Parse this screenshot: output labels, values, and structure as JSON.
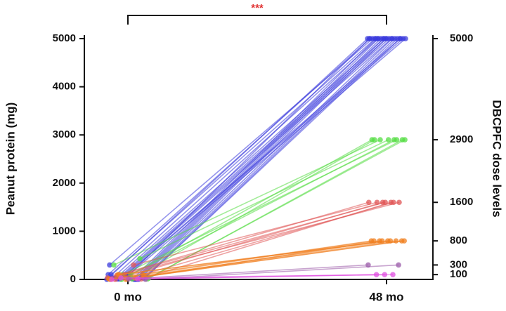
{
  "chart_data": {
    "type": "line",
    "categories": [
      "0 mo",
      "48 mo"
    ],
    "ylabel": "Peanut protein (mg)",
    "y2label": "DBCPFC dose levels",
    "annotation": "***",
    "ylim": [
      0,
      5000
    ],
    "yticks": [
      0,
      1000,
      2000,
      3000,
      4000,
      5000
    ],
    "y2lim": [
      0,
      5000
    ],
    "y2ticks": [
      100,
      300,
      800,
      1600,
      2900,
      5000
    ],
    "series": [
      {
        "color": "#3b3bdc",
        "values": [
          0,
          5000
        ]
      },
      {
        "color": "#3b3bdc",
        "values": [
          10,
          5000
        ]
      },
      {
        "color": "#3b3bdc",
        "values": [
          30,
          5000
        ]
      },
      {
        "color": "#3b3bdc",
        "values": [
          50,
          5000
        ]
      },
      {
        "color": "#3b3bdc",
        "values": [
          80,
          5000
        ]
      },
      {
        "color": "#3b3bdc",
        "values": [
          100,
          5000
        ]
      },
      {
        "color": "#3b3bdc",
        "values": [
          0,
          5000
        ]
      },
      {
        "color": "#3b3bdc",
        "values": [
          10,
          5000
        ]
      },
      {
        "color": "#3b3bdc",
        "values": [
          30,
          5000
        ]
      },
      {
        "color": "#3b3bdc",
        "values": [
          100,
          5000
        ]
      },
      {
        "color": "#3b3bdc",
        "values": [
          300,
          5000
        ]
      },
      {
        "color": "#3b3bdc",
        "values": [
          0,
          5000
        ]
      },
      {
        "color": "#3b3bdc",
        "values": [
          10,
          5000
        ]
      },
      {
        "color": "#3b3bdc",
        "values": [
          30,
          5000
        ]
      },
      {
        "color": "#3b3bdc",
        "values": [
          80,
          5000
        ]
      },
      {
        "color": "#3b3bdc",
        "values": [
          100,
          5000
        ]
      },
      {
        "color": "#3b3bdc",
        "values": [
          0,
          5000
        ]
      },
      {
        "color": "#3b3bdc",
        "values": [
          10,
          5000
        ]
      },
      {
        "color": "#3b3bdc",
        "values": [
          50,
          5000
        ]
      },
      {
        "color": "#3b3bdc",
        "values": [
          100,
          5000
        ]
      },
      {
        "color": "#3b3bdc",
        "values": [
          30,
          5000
        ]
      },
      {
        "color": "#3b3bdc",
        "values": [
          0,
          5000
        ]
      },
      {
        "color": "#55dd44",
        "values": [
          0,
          2900
        ]
      },
      {
        "color": "#55dd44",
        "values": [
          10,
          2900
        ]
      },
      {
        "color": "#55dd44",
        "values": [
          100,
          2900
        ]
      },
      {
        "color": "#55dd44",
        "values": [
          300,
          2900
        ]
      },
      {
        "color": "#55dd44",
        "values": [
          430,
          2900
        ]
      },
      {
        "color": "#55dd44",
        "values": [
          100,
          2900
        ]
      },
      {
        "color": "#55dd44",
        "values": [
          30,
          2900
        ]
      },
      {
        "color": "#55dd44",
        "values": [
          10,
          2900
        ]
      },
      {
        "color": "#e05555",
        "values": [
          0,
          1600
        ]
      },
      {
        "color": "#e05555",
        "values": [
          10,
          1600
        ]
      },
      {
        "color": "#e05555",
        "values": [
          100,
          1600
        ]
      },
      {
        "color": "#e05555",
        "values": [
          30,
          1600
        ]
      },
      {
        "color": "#e05555",
        "values": [
          300,
          1600
        ]
      },
      {
        "color": "#e05555",
        "values": [
          80,
          1600
        ]
      },
      {
        "color": "#e05555",
        "values": [
          100,
          1600
        ]
      },
      {
        "color": "#f08020",
        "values": [
          0,
          800
        ]
      },
      {
        "color": "#f08020",
        "values": [
          10,
          800
        ]
      },
      {
        "color": "#f08020",
        "values": [
          30,
          800
        ]
      },
      {
        "color": "#f08020",
        "values": [
          100,
          800
        ]
      },
      {
        "color": "#f08020",
        "values": [
          80,
          800
        ]
      },
      {
        "color": "#f08020",
        "values": [
          10,
          800
        ]
      },
      {
        "color": "#f08020",
        "values": [
          0,
          800
        ]
      },
      {
        "color": "#f08020",
        "values": [
          30,
          800
        ]
      },
      {
        "color": "#f08020",
        "values": [
          100,
          800
        ]
      },
      {
        "color": "#9a5aa8",
        "values": [
          0,
          300
        ]
      },
      {
        "color": "#9a5aa8",
        "values": [
          10,
          300
        ]
      },
      {
        "color": "#e050e0",
        "values": [
          0,
          100
        ]
      },
      {
        "color": "#e050e0",
        "values": [
          10,
          100
        ]
      },
      {
        "color": "#e050e0",
        "values": [
          30,
          100
        ]
      }
    ]
  }
}
